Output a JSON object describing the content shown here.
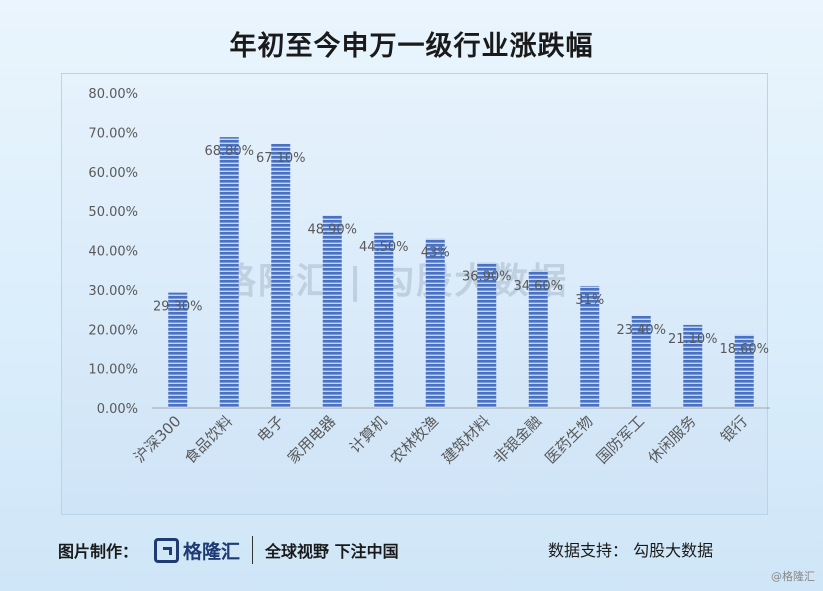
{
  "title": "年初至今申万一级行业涨跌幅",
  "footer": {
    "made_by": "图片制作：",
    "logo_text": "格隆汇",
    "slogan": "全球视野 下注中国",
    "data_support": "数据支持：  勾股大数据",
    "corner_watermark": "@格隆汇"
  },
  "watermark": {
    "text": "格隆汇 | 勾股大数据"
  },
  "colors": {
    "bar": "#4a72c4",
    "bar_stripe": "#c7d6ef",
    "axis": "#7f7f7f",
    "text": "#595959"
  },
  "chart_data": {
    "type": "bar",
    "title": "年初至今申万一级行业涨跌幅",
    "categories": [
      "沪深300",
      "食品饮料",
      "电子",
      "家用电器",
      "计算机",
      "农林牧渔",
      "建筑材料",
      "非银金融",
      "医药生物",
      "国防军工",
      "休闲服务",
      "银行"
    ],
    "values": [
      29.3,
      68.8,
      67.1,
      48.9,
      44.5,
      43,
      36.9,
      34.6,
      31,
      23.4,
      21.1,
      18.6
    ],
    "value_labels": [
      "29.30%",
      "68.80%",
      "67.10%",
      "48.90%",
      "44.50%",
      "43%",
      "36.90%",
      "34.60%",
      "31%",
      "23.40%",
      "21.10%",
      "18.60%"
    ],
    "y_ticks": [
      "0.00%",
      "10.00%",
      "20.00%",
      "30.00%",
      "40.00%",
      "50.00%",
      "60.00%",
      "70.00%",
      "80.00%"
    ],
    "ylim": [
      0,
      80
    ],
    "xlabel": "",
    "ylabel": "",
    "grid": false,
    "legend": "none"
  }
}
